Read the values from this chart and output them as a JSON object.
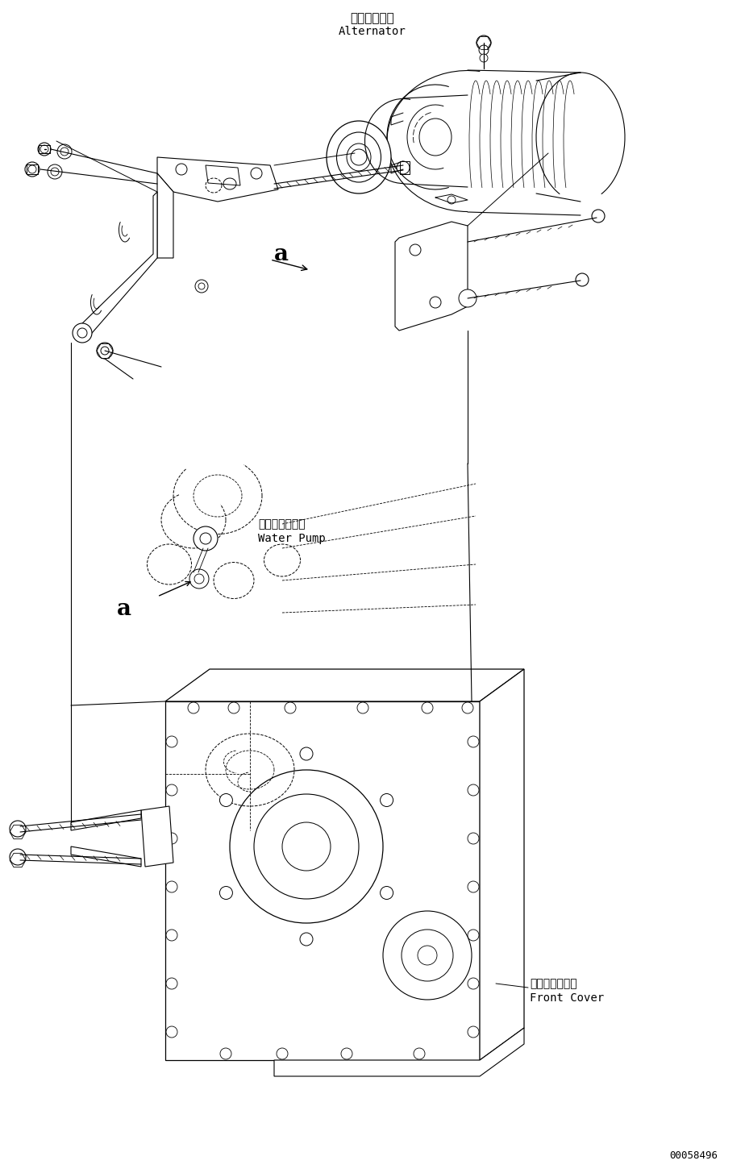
{
  "bg_color": "#ffffff",
  "line_color": "#000000",
  "fig_width": 9.24,
  "fig_height": 14.55,
  "dpi": 100,
  "labels": {
    "alternator_jp": "オルタネータ",
    "alternator_en": "Alternator",
    "water_pump_jp": "ウォータポンプ",
    "water_pump_en": "Water Pump",
    "front_cover_jp": "フロントカバー",
    "front_cover_en": "Front Cover",
    "part_a": "a",
    "part_a2": "a",
    "part_num": "00058496"
  }
}
